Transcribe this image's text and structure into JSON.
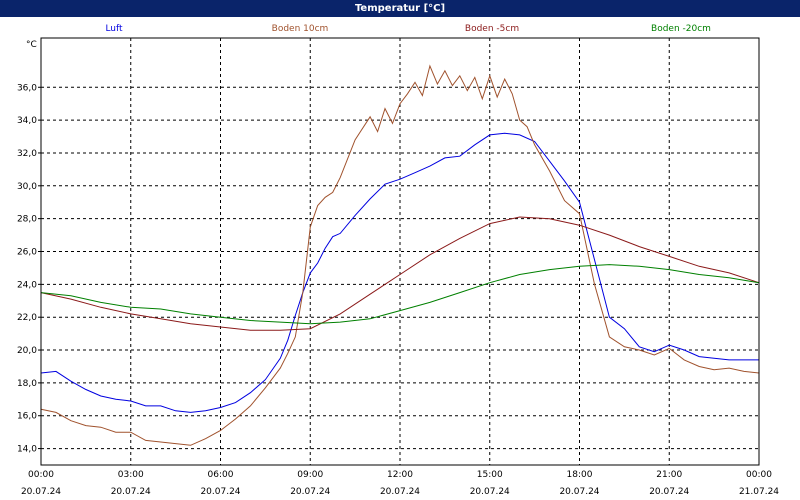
{
  "window": {
    "title": "Temperatur [°C]"
  },
  "chart_data": {
    "type": "line",
    "title": "Temperatur [°C]",
    "ylabel": "°C",
    "xlabel": "",
    "ylim": [
      13.0,
      39.0
    ],
    "xlim": [
      0,
      24
    ],
    "grid": true,
    "legend_placement": "top",
    "x_tick_labels": [
      {
        "time": "00:00",
        "date": "20.07.24"
      },
      {
        "time": "03:00",
        "date": "20.07.24"
      },
      {
        "time": "06:00",
        "date": "20.07.24"
      },
      {
        "time": "09:00",
        "date": "20.07.24"
      },
      {
        "time": "12:00",
        "date": "20.07.24"
      },
      {
        "time": "15:00",
        "date": "20.07.24"
      },
      {
        "time": "18:00",
        "date": "20.07.24"
      },
      {
        "time": "21:00",
        "date": "20.07.24"
      },
      {
        "time": "00:00",
        "date": "21.07.24"
      }
    ],
    "y_ticks": [
      "14,0",
      "16,0",
      "18,0",
      "20,0",
      "22,0",
      "24,0",
      "26,0",
      "28,0",
      "30,0",
      "32,0",
      "34,0",
      "36,0"
    ],
    "y_tick_values": [
      14,
      16,
      18,
      20,
      22,
      24,
      26,
      28,
      30,
      32,
      34,
      36
    ],
    "series": [
      {
        "name": "Luft",
        "color": "#0000e0",
        "x": [
          0,
          0.5,
          1,
          1.5,
          2,
          2.5,
          3,
          3.5,
          4,
          4.5,
          5,
          5.5,
          6,
          6.5,
          7,
          7.5,
          8,
          8.25,
          8.5,
          8.75,
          9,
          9.25,
          9.5,
          9.75,
          10,
          10.5,
          11,
          11.5,
          12,
          12.5,
          13,
          13.5,
          14,
          14.5,
          15,
          15.5,
          16,
          16.5,
          17,
          17.5,
          18,
          18.5,
          19,
          19.5,
          20,
          20.5,
          21,
          21.5,
          22,
          22.5,
          23,
          23.5,
          24
        ],
        "values": [
          18.6,
          18.7,
          18.1,
          17.6,
          17.2,
          17.0,
          16.9,
          16.6,
          16.6,
          16.3,
          16.2,
          16.3,
          16.5,
          16.8,
          17.4,
          18.2,
          19.5,
          20.6,
          22.1,
          23.5,
          24.7,
          25.3,
          26.2,
          26.9,
          27.1,
          28.2,
          29.2,
          30.1,
          30.4,
          30.8,
          31.2,
          31.7,
          31.8,
          32.5,
          33.1,
          33.2,
          33.1,
          32.7,
          31.5,
          30.3,
          29.0,
          25.5,
          22.0,
          21.3,
          20.2,
          19.9,
          20.3,
          20.0,
          19.6,
          19.5,
          19.4,
          19.4,
          19.4
        ]
      },
      {
        "name": "Boden 10cm",
        "color": "#a0522d",
        "x": [
          0,
          0.5,
          1,
          1.5,
          2,
          2.5,
          3,
          3.5,
          4,
          4.5,
          5,
          5.5,
          6,
          6.5,
          7,
          7.5,
          8,
          8.25,
          8.5,
          8.75,
          9,
          9.25,
          9.5,
          9.75,
          10,
          10.5,
          11,
          11.25,
          11.5,
          11.75,
          12,
          12.25,
          12.5,
          12.75,
          13,
          13.25,
          13.5,
          13.75,
          14,
          14.25,
          14.5,
          14.75,
          15,
          15.25,
          15.5,
          15.75,
          16,
          16.25,
          16.5,
          16.75,
          17,
          17.5,
          18,
          18.5,
          19,
          19.5,
          20,
          20.5,
          21,
          21.5,
          22,
          22.5,
          23,
          23.5,
          24
        ],
        "values": [
          16.4,
          16.2,
          15.7,
          15.4,
          15.3,
          15.0,
          15.0,
          14.5,
          14.4,
          14.3,
          14.2,
          14.6,
          15.1,
          15.8,
          16.6,
          17.7,
          18.9,
          19.8,
          20.8,
          23.5,
          27.5,
          28.8,
          29.3,
          29.6,
          30.5,
          32.8,
          34.2,
          33.3,
          34.7,
          33.8,
          35.0,
          35.6,
          36.3,
          35.5,
          37.3,
          36.2,
          37.0,
          36.1,
          36.7,
          35.8,
          36.6,
          35.3,
          36.7,
          35.4,
          36.5,
          35.6,
          34.0,
          33.6,
          32.5,
          31.7,
          30.9,
          29.1,
          28.3,
          24.0,
          20.8,
          20.2,
          20.0,
          19.7,
          20.1,
          19.4,
          19.0,
          18.8,
          18.9,
          18.7,
          18.6
        ]
      },
      {
        "name": "Boden -5cm",
        "color": "#8b1a1a",
        "x": [
          0,
          1,
          2,
          3,
          4,
          5,
          6,
          7,
          8,
          9,
          10,
          11,
          12,
          13,
          14,
          15,
          16,
          17,
          18,
          19,
          20,
          21,
          22,
          23,
          24
        ],
        "values": [
          23.5,
          23.1,
          22.6,
          22.2,
          21.9,
          21.6,
          21.4,
          21.2,
          21.2,
          21.3,
          22.2,
          23.4,
          24.6,
          25.8,
          26.8,
          27.7,
          28.1,
          28.0,
          27.6,
          27.0,
          26.3,
          25.7,
          25.1,
          24.7,
          24.1
        ]
      },
      {
        "name": "Boden -20cm",
        "color": "#008000",
        "x": [
          0,
          1,
          2,
          3,
          4,
          5,
          6,
          7,
          8,
          9,
          10,
          11,
          12,
          13,
          14,
          15,
          16,
          17,
          18,
          19,
          20,
          21,
          22,
          23,
          24
        ],
        "values": [
          23.5,
          23.3,
          22.9,
          22.6,
          22.5,
          22.2,
          22.0,
          21.8,
          21.7,
          21.6,
          21.7,
          21.9,
          22.4,
          22.9,
          23.5,
          24.1,
          24.6,
          24.9,
          25.1,
          25.2,
          25.1,
          24.9,
          24.6,
          24.4,
          24.1
        ]
      }
    ]
  }
}
